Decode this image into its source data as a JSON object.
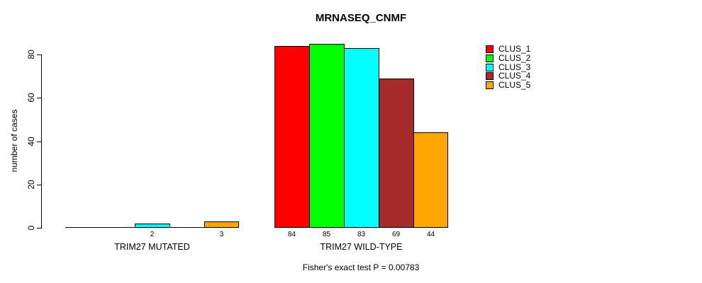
{
  "chart_data": {
    "type": "bar",
    "title": "MRNASEQ_CNMF",
    "ylabel": "number of cases",
    "xlabel": "",
    "ylim": [
      0,
      85
    ],
    "yticks": [
      0,
      20,
      40,
      60,
      80
    ],
    "grid": false,
    "legend_position": "top-right",
    "categories": [
      "TRIM27 MUTATED",
      "TRIM27 WILD-TYPE"
    ],
    "series": [
      {
        "name": "CLUS_1",
        "color": "#FF0000",
        "values": [
          0,
          84
        ]
      },
      {
        "name": "CLUS_2",
        "color": "#00FF00",
        "values": [
          0,
          85
        ]
      },
      {
        "name": "CLUS_3",
        "color": "#00FFFF",
        "values": [
          2,
          83
        ]
      },
      {
        "name": "CLUS_4",
        "color": "#A52A2A",
        "values": [
          0,
          69
        ]
      },
      {
        "name": "CLUS_5",
        "color": "#FFA500",
        "values": [
          3,
          44
        ]
      }
    ],
    "bar_value_labels": [
      [
        "",
        "",
        "2",
        "",
        "3"
      ],
      [
        "84",
        "85",
        "83",
        "69",
        "44"
      ]
    ],
    "annotation": "Fisher's exact test P = 0.00783"
  }
}
